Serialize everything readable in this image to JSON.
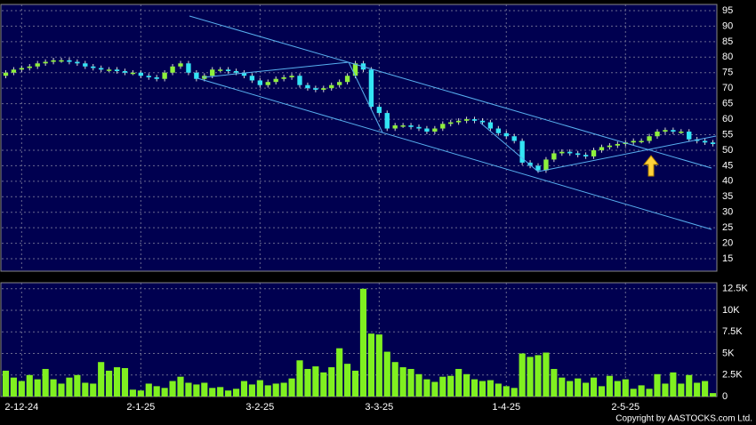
{
  "chart_data": {
    "type": "candlestick",
    "copyright": "Copyright by AASTOCKS.com Ltd.",
    "categories": [
      null,
      null,
      "2-12-24",
      null,
      null,
      null,
      null,
      null,
      null,
      null,
      null,
      null,
      null,
      null,
      null,
      null,
      null,
      "2-1-25",
      null,
      null,
      null,
      null,
      null,
      null,
      null,
      null,
      null,
      null,
      null,
      null,
      null,
      null,
      "3-2-25",
      null,
      null,
      null,
      null,
      null,
      null,
      null,
      null,
      null,
      null,
      null,
      null,
      null,
      null,
      "3-3-25",
      null,
      null,
      null,
      null,
      null,
      null,
      null,
      null,
      null,
      null,
      null,
      null,
      null,
      null,
      null,
      "1-4-25",
      null,
      null,
      null,
      null,
      null,
      null,
      null,
      null,
      null,
      null,
      null,
      null,
      null,
      null,
      "2-5-25",
      null,
      null,
      null,
      null,
      null,
      null,
      null,
      null,
      null,
      null,
      null
    ],
    "open": [
      74,
      75,
      76,
      76.5,
      77,
      78,
      78.5,
      79,
      79,
      78.5,
      78,
      77,
      76.5,
      76,
      76,
      75.5,
      75,
      75,
      74,
      73.5,
      73,
      75,
      77,
      78,
      75,
      73,
      74,
      76,
      76,
      75.5,
      75,
      74,
      72.5,
      71,
      72,
      73,
      73.5,
      74,
      71,
      70,
      69.5,
      70,
      71,
      72,
      74,
      78,
      76,
      64,
      62,
      57,
      58,
      58,
      57.5,
      57,
      56,
      57,
      58.5,
      59,
      59.5,
      60,
      59.5,
      59,
      57,
      55.5,
      54.5,
      53,
      46,
      45,
      43.5,
      47,
      49,
      49.5,
      49,
      48.5,
      48,
      50,
      51,
      51.5,
      52,
      52.5,
      53,
      53,
      54.5,
      56,
      56.5,
      56,
      56,
      53.5,
      53,
      52.5
    ],
    "high": [
      75.8,
      76.8,
      77.3,
      77.8,
      78.8,
      79.3,
      79.8,
      79.8,
      79.8,
      79.3,
      78.8,
      77.8,
      77.3,
      76.8,
      76.8,
      76.3,
      75.8,
      75.8,
      74.8,
      74.3,
      75.8,
      77.8,
      78.8,
      78.8,
      75.8,
      74.8,
      76.8,
      76.8,
      76.8,
      76.3,
      75.8,
      74.8,
      73.3,
      72.8,
      73.8,
      74.3,
      74.8,
      74.8,
      71.8,
      70.8,
      70.8,
      71.8,
      72.8,
      74.8,
      78.8,
      78.8,
      76.8,
      64.8,
      62.8,
      58.8,
      58.8,
      58.8,
      58.3,
      57.8,
      57.8,
      59.3,
      59.8,
      60.3,
      60.8,
      60.8,
      60.3,
      59.8,
      57.8,
      56.3,
      55.3,
      53.8,
      46.8,
      45.8,
      47.8,
      49.8,
      50.3,
      50.3,
      49.8,
      49.3,
      50.8,
      51.8,
      52.3,
      52.8,
      53.3,
      53.8,
      53.8,
      55.3,
      56.8,
      57.3,
      57.3,
      56.8,
      56.8,
      54.3,
      53.8,
      53.3
    ],
    "low": [
      73.2,
      74.2,
      75.2,
      75.7,
      76.2,
      77.2,
      77.7,
      78.2,
      77.7,
      77.2,
      76.2,
      75.7,
      75.2,
      75.2,
      74.7,
      74.2,
      74.2,
      73.2,
      72.7,
      72.2,
      72.2,
      74.2,
      76.2,
      74.2,
      72.2,
      72.2,
      73.2,
      75.2,
      74.7,
      74.2,
      73.2,
      71.7,
      70.2,
      70.2,
      71.2,
      72.2,
      72.7,
      70.2,
      69.2,
      68.7,
      68.7,
      69.2,
      70.2,
      71.2,
      73.2,
      75.2,
      63.2,
      61.2,
      56.2,
      56.2,
      57.2,
      56.7,
      56.2,
      55.2,
      55.2,
      56.2,
      57.7,
      58.2,
      58.7,
      58.7,
      58.2,
      56.2,
      54.7,
      53.7,
      52.2,
      45.2,
      44.2,
      42.7,
      42.7,
      46.2,
      48.2,
      48.2,
      47.7,
      47.2,
      47.2,
      49.2,
      50.2,
      50.7,
      51.2,
      51.7,
      52.2,
      52.2,
      53.7,
      55.2,
      55.2,
      55.2,
      52.7,
      52.2,
      51.7,
      51.2
    ],
    "close": [
      75,
      76,
      76.5,
      77,
      78,
      78.5,
      79,
      79,
      78.5,
      78,
      77,
      76.5,
      76,
      76,
      75.5,
      75,
      75,
      74,
      73.5,
      73,
      75,
      77,
      78,
      75,
      73,
      74,
      76,
      76,
      75.5,
      75,
      74,
      72.5,
      71,
      72,
      73,
      73.5,
      74,
      71,
      70,
      69.5,
      70,
      71,
      72,
      74,
      78,
      76,
      64,
      62,
      57,
      58,
      58,
      57.5,
      57,
      56,
      57,
      58.5,
      59,
      59.5,
      60,
      59.5,
      59,
      57,
      55.5,
      54.5,
      53,
      46,
      45,
      43.5,
      47,
      49,
      49.5,
      49,
      48.5,
      48,
      50,
      51,
      51.5,
      52,
      52.5,
      53,
      53,
      54.5,
      56,
      56.5,
      56,
      56,
      53.5,
      53,
      52.5,
      52
    ],
    "volume": [
      3000,
      2200,
      1800,
      2500,
      2000,
      3200,
      2000,
      1500,
      2200,
      2500,
      1600,
      1500,
      4000,
      3000,
      3400,
      3300,
      800,
      700,
      1500,
      1200,
      1000,
      1800,
      2300,
      1600,
      1400,
      1600,
      1000,
      1100,
      700,
      900,
      1800,
      1400,
      1900,
      1300,
      1500,
      1600,
      2100,
      4200,
      3200,
      3500,
      2800,
      3400,
      5600,
      3800,
      3000,
      12500,
      7300,
      7200,
      5200,
      4000,
      3400,
      3200,
      2600,
      2000,
      1700,
      2300,
      2400,
      3200,
      2600,
      2000,
      1800,
      1900,
      1500,
      1200,
      1000,
      5000,
      4600,
      4800,
      5100,
      3200,
      2200,
      1800,
      2100,
      1600,
      2200,
      1200,
      2400,
      1800,
      2000,
      900,
      1300,
      900,
      2600,
      1500,
      2800,
      1500,
      2500,
      1600,
      1800,
      400
    ],
    "up_color": "#8ef03c",
    "down_color": "#33e4f4",
    "volume_color": "#80f020",
    "ylim": [
      11,
      97
    ],
    "yticks": [
      15,
      20,
      25,
      30,
      35,
      40,
      45,
      50,
      55,
      60,
      65,
      70,
      75,
      80,
      85,
      90,
      95
    ],
    "y2lim": [
      0,
      13200
    ],
    "y2ticks": [
      0,
      {
        "value": 2500,
        "label": "2.5K"
      },
      {
        "value": 5000,
        "label": "5K"
      },
      {
        "value": 7500,
        "label": "7.5K"
      },
      {
        "value": 10000,
        "label": "10K"
      },
      {
        "value": 12500,
        "label": "12.5K"
      }
    ],
    "grid": true
  }
}
